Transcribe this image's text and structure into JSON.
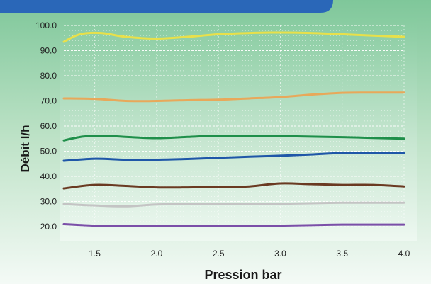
{
  "chart_data": {
    "type": "line",
    "xlabel": "Pression bar",
    "ylabel": "Débit  l/h",
    "xlim": [
      1.25,
      4.0
    ],
    "ylim": [
      20,
      100
    ],
    "x_ticks": [
      "1.5",
      "2.0",
      "2.5",
      "3.0",
      "3.5",
      "4.0"
    ],
    "y_ticks": [
      "20.0",
      "30.0",
      "40.0",
      "50.0",
      "60.0",
      "70.0",
      "80.0",
      "90.0",
      "100.0"
    ],
    "grid": true,
    "series": [
      {
        "color": "#e8e04a",
        "x": [
          1.25,
          1.38,
          1.55,
          1.75,
          2.0,
          2.25,
          2.5,
          2.75,
          3.0,
          3.25,
          3.5,
          3.75,
          4.0
        ],
        "values": [
          93.5,
          96.5,
          97.0,
          95.5,
          94.8,
          95.5,
          96.5,
          97.0,
          97.2,
          97.0,
          96.5,
          96.0,
          95.5
        ]
      },
      {
        "color": "#e8a85a",
        "x": [
          1.25,
          1.5,
          1.75,
          2.0,
          2.25,
          2.5,
          2.75,
          3.0,
          3.25,
          3.5,
          3.75,
          4.0
        ],
        "values": [
          71.0,
          70.8,
          70.0,
          70.0,
          70.3,
          70.5,
          71.0,
          71.5,
          72.5,
          73.2,
          73.3,
          73.3
        ]
      },
      {
        "color": "#1f8f4a",
        "x": [
          1.25,
          1.4,
          1.55,
          1.75,
          2.0,
          2.25,
          2.5,
          2.75,
          3.0,
          3.25,
          3.5,
          3.75,
          4.0
        ],
        "values": [
          54.3,
          55.8,
          56.2,
          55.7,
          55.2,
          55.7,
          56.2,
          56.0,
          56.0,
          55.8,
          55.6,
          55.3,
          55.0
        ]
      },
      {
        "color": "#1f57a8",
        "x": [
          1.25,
          1.5,
          1.75,
          2.0,
          2.25,
          2.5,
          2.75,
          3.0,
          3.25,
          3.5,
          3.75,
          4.0
        ],
        "values": [
          46.2,
          47.0,
          46.6,
          46.6,
          46.9,
          47.4,
          47.8,
          48.2,
          48.7,
          49.3,
          49.2,
          49.2
        ]
      },
      {
        "color": "#6a3a22",
        "x": [
          1.25,
          1.5,
          1.75,
          2.0,
          2.25,
          2.5,
          2.75,
          3.0,
          3.25,
          3.5,
          3.75,
          4.0
        ],
        "values": [
          35.2,
          36.6,
          36.2,
          35.6,
          35.6,
          35.8,
          36.0,
          37.2,
          36.9,
          36.6,
          36.6,
          36.0
        ]
      },
      {
        "color": "#c4c4c4",
        "x": [
          1.25,
          1.5,
          1.75,
          2.0,
          2.25,
          2.5,
          2.75,
          3.0,
          3.25,
          3.5,
          3.75,
          4.0
        ],
        "values": [
          29.0,
          28.4,
          28.1,
          28.8,
          29.0,
          29.0,
          29.0,
          29.1,
          29.3,
          29.5,
          29.5,
          29.5
        ]
      },
      {
        "color": "#7b4fa8",
        "x": [
          1.25,
          1.5,
          1.75,
          2.0,
          2.25,
          2.5,
          2.75,
          3.0,
          3.25,
          3.5,
          3.75,
          4.0
        ],
        "values": [
          21.0,
          20.4,
          20.2,
          20.2,
          20.2,
          20.2,
          20.3,
          20.4,
          20.6,
          20.8,
          20.8,
          20.8
        ]
      }
    ]
  }
}
